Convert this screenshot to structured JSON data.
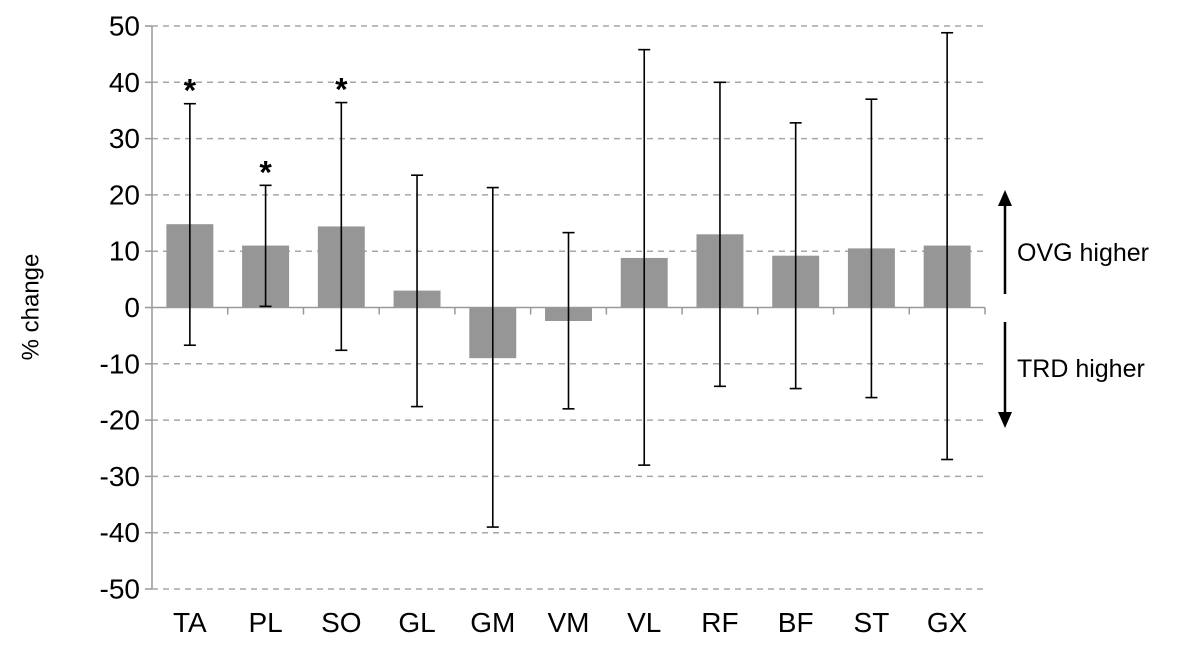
{
  "chart_data": {
    "type": "bar",
    "title": "",
    "xlabel": "",
    "ylabel": "% change",
    "ylim": [
      -50,
      50
    ],
    "yticks": [
      -50,
      -40,
      -30,
      -20,
      -10,
      0,
      10,
      20,
      30,
      40,
      50
    ],
    "grid": "horizontal dashed",
    "categories": [
      "TA",
      "PL",
      "SO",
      "GL",
      "GM",
      "VM",
      "VL",
      "RF",
      "BF",
      "ST",
      "GX"
    ],
    "values": [
      14.8,
      11.0,
      14.4,
      3.0,
      -9.0,
      -2.4,
      8.8,
      13.0,
      9.2,
      10.5,
      11.0
    ],
    "error_upper": [
      36.2,
      21.7,
      36.4,
      23.5,
      21.3,
      13.3,
      45.8,
      40.0,
      32.8,
      37.0,
      48.8
    ],
    "error_lower": [
      -6.7,
      0.2,
      -7.6,
      -17.6,
      -39.0,
      -18.0,
      -28.0,
      -14.0,
      -14.4,
      -16.0,
      -27.0
    ],
    "significance": [
      "*",
      "*",
      "*",
      "",
      "",
      "",
      "",
      "",
      "",
      "",
      ""
    ],
    "bar_color": "#969696",
    "annotations": {
      "up_label": "OVG higher",
      "down_label": "TRD higher"
    }
  }
}
